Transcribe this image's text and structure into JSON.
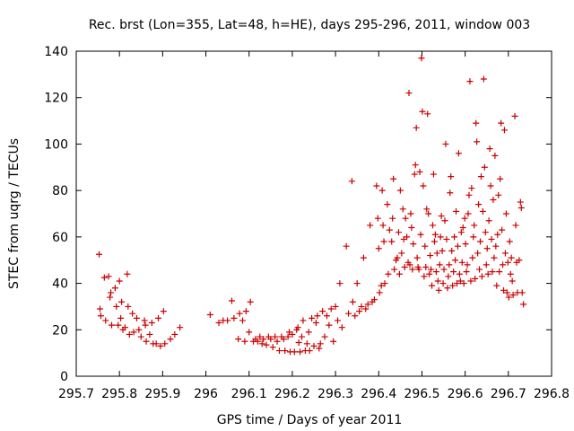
{
  "chart_data": {
    "type": "scatter",
    "title": "Rec. brst (Lon=355, Lat=48, h=HE), days 295-296, 2011, window 003",
    "xlabel": "GPS time / Days of year 2011",
    "ylabel": "STEC from uqrg / TECUs",
    "xlim": [
      295.7,
      296.8
    ],
    "ylim": [
      0,
      140
    ],
    "x_ticks": [
      295.7,
      295.8,
      295.9,
      296,
      296.1,
      296.2,
      296.3,
      296.4,
      296.5,
      296.6,
      296.7,
      296.8
    ],
    "x_tick_labels": [
      "295.7",
      "295.8",
      "295.9",
      "296",
      "296.1",
      "296.2",
      "296.3",
      "296.4",
      "296.5",
      "296.6",
      "296.7",
      "296.8"
    ],
    "y_ticks": [
      0,
      20,
      40,
      60,
      80,
      100,
      120,
      140
    ],
    "y_tick_labels": [
      "0",
      "20",
      "40",
      "60",
      "80",
      "100",
      "120",
      "140"
    ],
    "grid": false,
    "marker": "plus",
    "color": "#cc0000",
    "points": [
      [
        295.753,
        52.5
      ],
      [
        295.755,
        29
      ],
      [
        295.757,
        26
      ],
      [
        295.765,
        42.5
      ],
      [
        295.768,
        24
      ],
      [
        295.775,
        43
      ],
      [
        295.778,
        34
      ],
      [
        295.78,
        36
      ],
      [
        295.782,
        22
      ],
      [
        295.79,
        38
      ],
      [
        295.793,
        30
      ],
      [
        295.797,
        22
      ],
      [
        295.8,
        41
      ],
      [
        295.803,
        25
      ],
      [
        295.805,
        32
      ],
      [
        295.808,
        20
      ],
      [
        295.813,
        21
      ],
      [
        295.818,
        44
      ],
      [
        295.82,
        30
      ],
      [
        295.823,
        18
      ],
      [
        295.83,
        27
      ],
      [
        295.833,
        19
      ],
      [
        295.84,
        25
      ],
      [
        295.845,
        20
      ],
      [
        295.85,
        17
      ],
      [
        295.858,
        24
      ],
      [
        295.86,
        22
      ],
      [
        295.862,
        15
      ],
      [
        295.87,
        18
      ],
      [
        295.875,
        23
      ],
      [
        295.878,
        14
      ],
      [
        295.885,
        14
      ],
      [
        295.89,
        25
      ],
      [
        295.895,
        13
      ],
      [
        295.902,
        28
      ],
      [
        295.905,
        14
      ],
      [
        295.918,
        16
      ],
      [
        295.928,
        18
      ],
      [
        295.94,
        21
      ],
      [
        296.01,
        26.5
      ],
      [
        296.03,
        23
      ],
      [
        296.04,
        24
      ],
      [
        296.05,
        24
      ],
      [
        296.06,
        32.5
      ],
      [
        296.065,
        25
      ],
      [
        296.075,
        16
      ],
      [
        296.078,
        27
      ],
      [
        296.085,
        24
      ],
      [
        296.09,
        15
      ],
      [
        296.093,
        28
      ],
      [
        296.1,
        19
      ],
      [
        296.103,
        32
      ],
      [
        296.11,
        15
      ],
      [
        296.115,
        16
      ],
      [
        296.12,
        15
      ],
      [
        296.125,
        17
      ],
      [
        296.13,
        14
      ],
      [
        296.133,
        16
      ],
      [
        296.14,
        13.5
      ],
      [
        296.145,
        17
      ],
      [
        296.15,
        16
      ],
      [
        296.155,
        12.5
      ],
      [
        296.16,
        17
      ],
      [
        296.165,
        15
      ],
      [
        296.17,
        11
      ],
      [
        296.175,
        17
      ],
      [
        296.18,
        16
      ],
      [
        296.183,
        11
      ],
      [
        296.19,
        17
      ],
      [
        296.193,
        19
      ],
      [
        296.195,
        10.5
      ],
      [
        296.2,
        18
      ],
      [
        296.205,
        10.5
      ],
      [
        296.21,
        20
      ],
      [
        296.213,
        21
      ],
      [
        296.215,
        14.5
      ],
      [
        296.218,
        10.5
      ],
      [
        296.222,
        17
      ],
      [
        296.225,
        24
      ],
      [
        296.23,
        11
      ],
      [
        296.234,
        14
      ],
      [
        296.238,
        19
      ],
      [
        296.24,
        11
      ],
      [
        296.245,
        25
      ],
      [
        296.25,
        13
      ],
      [
        296.255,
        23
      ],
      [
        296.258,
        26
      ],
      [
        296.262,
        12
      ],
      [
        296.265,
        14
      ],
      [
        296.27,
        28
      ],
      [
        296.275,
        17
      ],
      [
        296.28,
        26
      ],
      [
        296.285,
        22
      ],
      [
        296.29,
        29
      ],
      [
        296.295,
        15
      ],
      [
        296.3,
        30
      ],
      [
        296.305,
        24
      ],
      [
        296.31,
        40
      ],
      [
        296.315,
        21
      ],
      [
        296.325,
        56
      ],
      [
        296.33,
        27
      ],
      [
        296.338,
        84
      ],
      [
        296.34,
        32
      ],
      [
        296.345,
        26
      ],
      [
        296.35,
        40
      ],
      [
        296.355,
        28
      ],
      [
        296.36,
        30
      ],
      [
        296.365,
        51
      ],
      [
        296.37,
        29
      ],
      [
        296.375,
        31
      ],
      [
        296.38,
        65
      ],
      [
        296.385,
        32
      ],
      [
        296.39,
        33
      ],
      [
        296.395,
        82
      ],
      [
        296.398,
        68
      ],
      [
        296.4,
        55
      ],
      [
        296.402,
        36
      ],
      [
        296.406,
        39
      ],
      [
        296.408,
        80
      ],
      [
        296.41,
        65
      ],
      [
        296.412,
        58
      ],
      [
        296.414,
        40
      ],
      [
        296.42,
        74
      ],
      [
        296.422,
        44
      ],
      [
        296.425,
        63
      ],
      [
        296.43,
        58
      ],
      [
        296.432,
        68
      ],
      [
        296.434,
        85
      ],
      [
        296.436,
        46
      ],
      [
        296.44,
        50
      ],
      [
        296.443,
        51
      ],
      [
        296.446,
        62
      ],
      [
        296.448,
        44
      ],
      [
        296.45,
        80
      ],
      [
        296.453,
        53
      ],
      [
        296.456,
        72
      ],
      [
        296.458,
        59
      ],
      [
        296.46,
        47
      ],
      [
        296.462,
        68
      ],
      [
        296.465,
        60
      ],
      [
        296.468,
        49
      ],
      [
        296.47,
        122
      ],
      [
        296.472,
        48
      ],
      [
        296.474,
        70
      ],
      [
        296.476,
        64
      ],
      [
        296.478,
        46
      ],
      [
        296.48,
        57
      ],
      [
        296.483,
        87
      ],
      [
        296.485,
        91
      ],
      [
        296.487,
        107
      ],
      [
        296.489,
        51
      ],
      [
        296.491,
        47
      ],
      [
        296.493,
        46
      ],
      [
        296.495,
        88
      ],
      [
        296.497,
        61
      ],
      [
        296.499,
        137
      ],
      [
        296.501,
        114
      ],
      [
        296.503,
        82
      ],
      [
        296.505,
        43
      ],
      [
        296.507,
        56
      ],
      [
        296.509,
        47
      ],
      [
        296.511,
        72
      ],
      [
        296.513,
        113
      ],
      [
        296.515,
        70
      ],
      [
        296.517,
        44
      ],
      [
        296.519,
        52
      ],
      [
        296.521,
        46
      ],
      [
        296.523,
        39
      ],
      [
        296.525,
        65
      ],
      [
        296.527,
        87
      ],
      [
        296.529,
        58
      ],
      [
        296.531,
        61
      ],
      [
        296.533,
        45
      ],
      [
        296.535,
        53
      ],
      [
        296.537,
        41
      ],
      [
        296.539,
        37
      ],
      [
        296.541,
        48
      ],
      [
        296.543,
        60
      ],
      [
        296.545,
        69
      ],
      [
        296.547,
        54
      ],
      [
        296.549,
        40
      ],
      [
        296.551,
        46
      ],
      [
        296.553,
        67
      ],
      [
        296.555,
        100
      ],
      [
        296.557,
        59
      ],
      [
        296.559,
        38
      ],
      [
        296.561,
        43
      ],
      [
        296.563,
        48
      ],
      [
        296.565,
        79
      ],
      [
        296.567,
        86
      ],
      [
        296.569,
        54
      ],
      [
        296.571,
        39
      ],
      [
        296.573,
        45
      ],
      [
        296.575,
        60
      ],
      [
        296.577,
        50
      ],
      [
        296.579,
        71
      ],
      [
        296.581,
        40
      ],
      [
        296.583,
        56
      ],
      [
        296.585,
        96
      ],
      [
        296.587,
        44
      ],
      [
        296.589,
        41
      ],
      [
        296.591,
        62
      ],
      [
        296.593,
        49
      ],
      [
        296.595,
        64
      ],
      [
        296.597,
        40
      ],
      [
        296.599,
        68
      ],
      [
        296.601,
        57
      ],
      [
        296.603,
        45
      ],
      [
        296.605,
        48
      ],
      [
        296.607,
        70
      ],
      [
        296.609,
        78
      ],
      [
        296.611,
        127
      ],
      [
        296.613,
        41
      ],
      [
        296.615,
        81
      ],
      [
        296.617,
        51
      ],
      [
        296.619,
        60
      ],
      [
        296.621,
        65
      ],
      [
        296.623,
        42
      ],
      [
        296.625,
        109
      ],
      [
        296.627,
        101
      ],
      [
        296.629,
        53
      ],
      [
        296.631,
        74
      ],
      [
        296.633,
        46
      ],
      [
        296.635,
        58
      ],
      [
        296.637,
        86
      ],
      [
        296.639,
        43
      ],
      [
        296.641,
        71
      ],
      [
        296.643,
        128
      ],
      [
        296.645,
        90
      ],
      [
        296.647,
        62
      ],
      [
        296.649,
        48
      ],
      [
        296.651,
        55
      ],
      [
        296.653,
        44
      ],
      [
        296.655,
        67
      ],
      [
        296.657,
        98
      ],
      [
        296.659,
        82
      ],
      [
        296.661,
        59
      ],
      [
        296.663,
        45
      ],
      [
        296.665,
        76
      ],
      [
        296.667,
        51
      ],
      [
        296.669,
        95
      ],
      [
        296.671,
        56
      ],
      [
        296.673,
        39
      ],
      [
        296.675,
        61
      ],
      [
        296.677,
        78
      ],
      [
        296.679,
        45
      ],
      [
        296.681,
        85
      ],
      [
        296.683,
        109
      ],
      [
        296.685,
        63
      ],
      [
        296.687,
        48
      ],
      [
        296.689,
        37
      ],
      [
        296.691,
        106
      ],
      [
        296.693,
        53
      ],
      [
        296.695,
        70
      ],
      [
        296.697,
        36
      ],
      [
        296.699,
        49
      ],
      [
        296.701,
        34
      ],
      [
        296.703,
        58
      ],
      [
        296.705,
        44
      ],
      [
        296.707,
        51
      ],
      [
        296.709,
        41
      ],
      [
        296.711,
        35
      ],
      [
        296.715,
        112
      ],
      [
        296.717,
        65
      ],
      [
        296.719,
        49
      ],
      [
        296.721,
        36
      ],
      [
        296.725,
        50
      ],
      [
        296.728,
        75
      ],
      [
        296.73,
        72.5
      ],
      [
        296.732,
        36
      ],
      [
        296.735,
        31
      ]
    ]
  }
}
